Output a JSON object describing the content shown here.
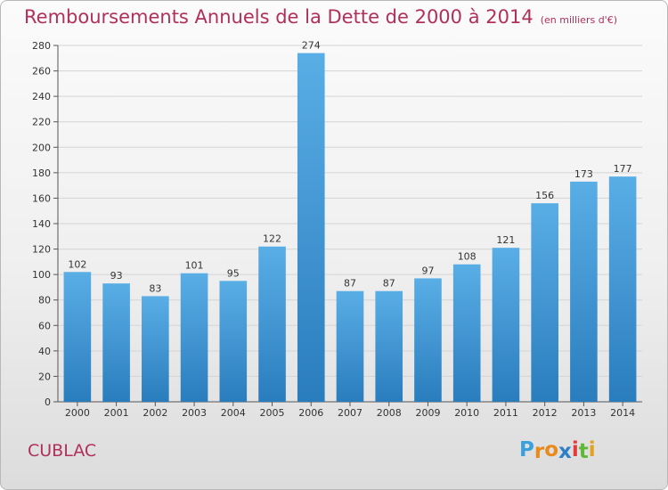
{
  "header": {
    "title": "Remboursements Annuels de la Dette de 2000 à 2014",
    "subtitle": "(en milliers d'€)"
  },
  "place_name": "CUBLAC",
  "brand": {
    "letters": [
      "P",
      "r",
      "o",
      "x",
      "i",
      "t",
      "i"
    ],
    "letter_colors": [
      "#3aa0dc",
      "#e88a1c",
      "#e88a1c",
      "#2f7fc8",
      "#e23b3b",
      "#5fb83a",
      "#e2a21c"
    ]
  },
  "colors": {
    "bar_top": "#5aaee6",
    "bar_bottom": "#2a7dbd",
    "title": "#b0305a"
  },
  "chart_data": {
    "type": "bar",
    "categories": [
      "2000",
      "2001",
      "2002",
      "2003",
      "2004",
      "2005",
      "2006",
      "2007",
      "2008",
      "2009",
      "2010",
      "2011",
      "2012",
      "2013",
      "2014"
    ],
    "values": [
      102,
      93,
      83,
      101,
      95,
      122,
      274,
      87,
      87,
      97,
      108,
      121,
      156,
      173,
      177
    ],
    "ylim": [
      0,
      280
    ],
    "yticks": [
      0,
      20,
      40,
      60,
      80,
      100,
      120,
      140,
      160,
      180,
      200,
      220,
      240,
      260,
      280
    ],
    "grid": true,
    "data_labels": true
  }
}
